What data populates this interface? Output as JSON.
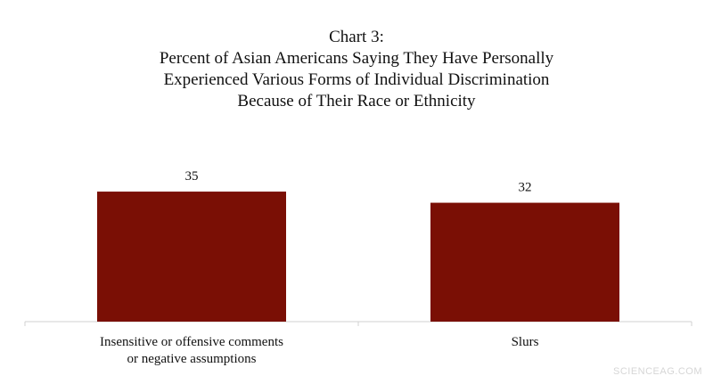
{
  "chart_data": {
    "type": "bar",
    "title_lines": [
      "Chart 3:",
      "Percent of Asian Americans Saying They Have Personally",
      "Experienced Various Forms of Individual Discrimination",
      "Because of Their Race or Ethnicity"
    ],
    "categories": [
      [
        "Insensitive or offensive comments",
        "or negative assumptions"
      ],
      [
        "Slurs"
      ]
    ],
    "values": [
      35,
      32
    ],
    "value_labels": [
      "35",
      "32"
    ],
    "bar_color": "#7a0f05",
    "axis_color": "#d0d0d0",
    "ylim": [
      0,
      40
    ],
    "grid": false,
    "legend": "none"
  },
  "watermark": "SCIENCEAG.COM"
}
